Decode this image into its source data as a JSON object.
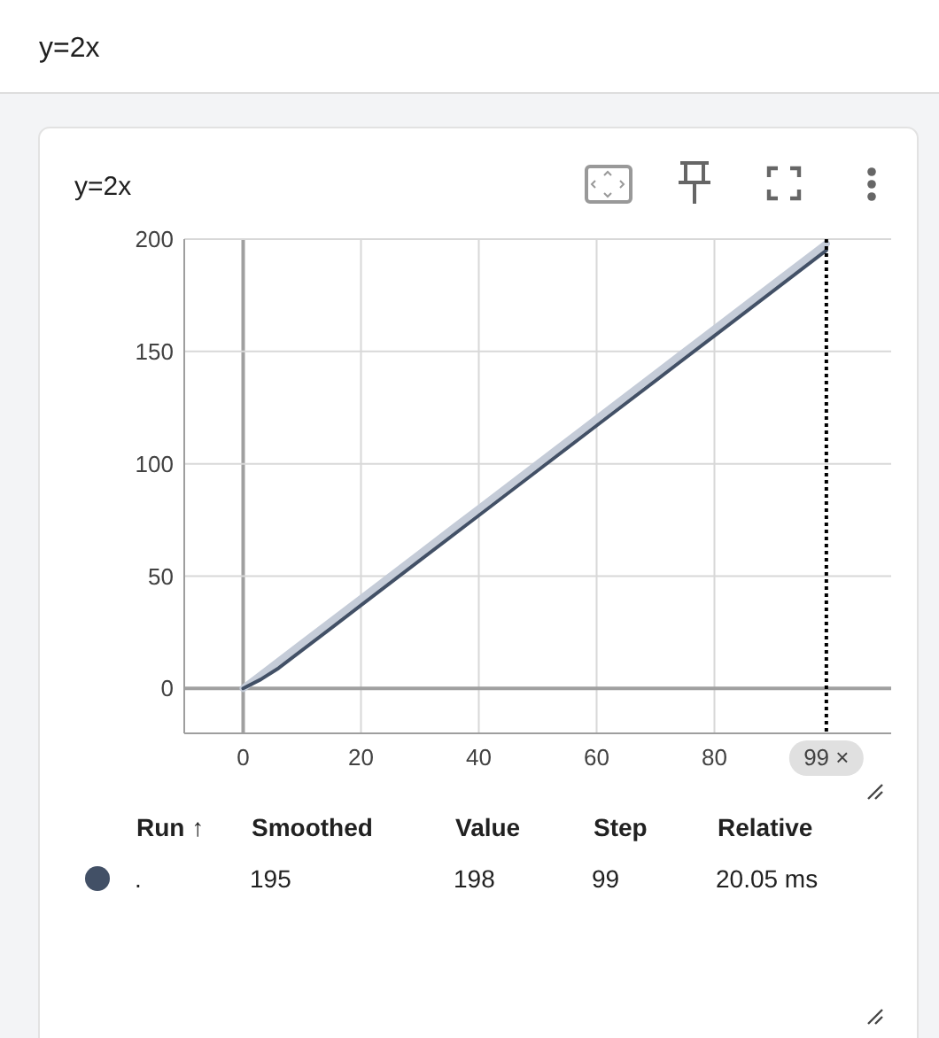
{
  "chart_data": {
    "type": "line",
    "title": "y=2x",
    "annotations": [
      "y=2x",
      "Run ↑",
      "Smoothed",
      "Value",
      "Step",
      "Relative",
      ".",
      "195",
      "198",
      "99",
      "20.05 ms"
    ],
    "series": [
      {
        "color": "#c5ccd8",
        "x": [
          0,
          10,
          20,
          30,
          40,
          50,
          60,
          70,
          80,
          90,
          99
        ],
        "values": [
          0,
          20,
          40,
          60,
          80,
          100,
          120,
          140,
          160,
          180,
          198
        ]
      },
      {
        "color": "#425066",
        "x": [
          0,
          3,
          6,
          10,
          15,
          20,
          30,
          40,
          50,
          60,
          70,
          80,
          90,
          99
        ],
        "values": [
          0,
          4,
          9,
          17,
          27,
          37,
          57,
          77,
          97,
          117,
          137,
          157,
          177,
          195
        ]
      }
    ],
    "xlim": [
      -10,
      110
    ],
    "xticks": [
      0,
      20,
      40,
      60,
      80
    ],
    "ylim": [
      -20,
      200
    ],
    "yticks": [
      0,
      50,
      100,
      150,
      200
    ],
    "grid": true,
    "line_style": "solid",
    "ref_lines": [
      {
        "axis": "x",
        "value": 99,
        "label": "99 ×",
        "color": "#000000",
        "line_style": "dotted"
      }
    ]
  }
}
